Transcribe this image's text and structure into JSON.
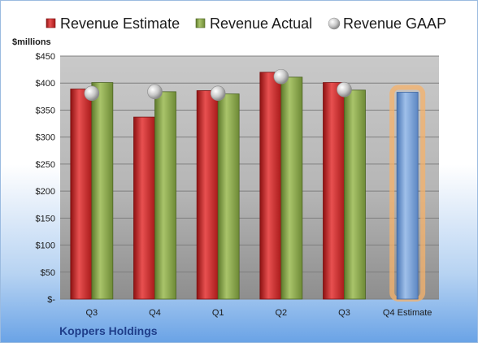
{
  "chart_data": {
    "type": "bar",
    "categories": [
      "Q3",
      "Q4",
      "Q1",
      "Q2",
      "Q3",
      "Q4 Estimate"
    ],
    "series": [
      {
        "name": "Revenue Estimate",
        "values": [
          389,
          337,
          386,
          420,
          401,
          null
        ]
      },
      {
        "name": "Revenue Actual",
        "values": [
          401,
          384,
          380,
          411,
          387,
          383
        ]
      },
      {
        "name": "Revenue GAAP",
        "values": [
          381,
          384,
          381,
          412,
          388,
          null
        ]
      }
    ],
    "ylabel": "$millions",
    "yticks": [
      "$-",
      "$50",
      "$100",
      "$150",
      "$200",
      "$250",
      "$300",
      "$350",
      "$400",
      "$450"
    ],
    "ylim": [
      0,
      450
    ],
    "grid": true,
    "legend": "top",
    "highlight_category": "Q4 Estimate",
    "colors": {
      "estimate": "#d42a2a",
      "actual": "#8aa94a",
      "gaap": "#c8c8c8",
      "forecast": "#7aa3d8",
      "forecast_glow": "#f5b26a"
    }
  },
  "company_name": "Koppers Holdings"
}
